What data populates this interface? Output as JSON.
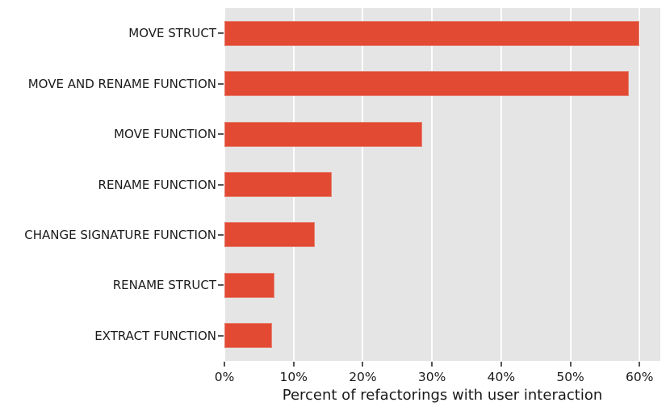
{
  "chart_data": {
    "type": "bar",
    "orientation": "horizontal",
    "title": "",
    "xlabel": "Percent of refactorings with user interaction",
    "ylabel": "",
    "categories": [
      "MOVE STRUCT",
      "MOVE AND RENAME FUNCTION",
      "MOVE FUNCTION",
      "RENAME FUNCTION",
      "CHANGE SIGNATURE FUNCTION",
      "RENAME STRUCT",
      "EXTRACT FUNCTION"
    ],
    "values": [
      60.0,
      58.4,
      28.6,
      15.5,
      13.1,
      7.2,
      6.9
    ],
    "value_unit": "%",
    "xlim": [
      0,
      63
    ],
    "x_ticks": [
      0,
      10,
      20,
      30,
      40,
      50,
      60
    ],
    "x_tick_labels": [
      "0%",
      "10%",
      "20%",
      "30%",
      "40%",
      "50%",
      "60%"
    ],
    "grid": true,
    "legend": false,
    "colors": {
      "bar": "#E24A33",
      "bar_edge": "#EDEDED",
      "plot_background": "#E5E5E5",
      "gridline": "#FFFFFF",
      "tick_mark": "#555555",
      "text": "#1A1A1A",
      "figure_background": "#FFFFFF"
    }
  }
}
